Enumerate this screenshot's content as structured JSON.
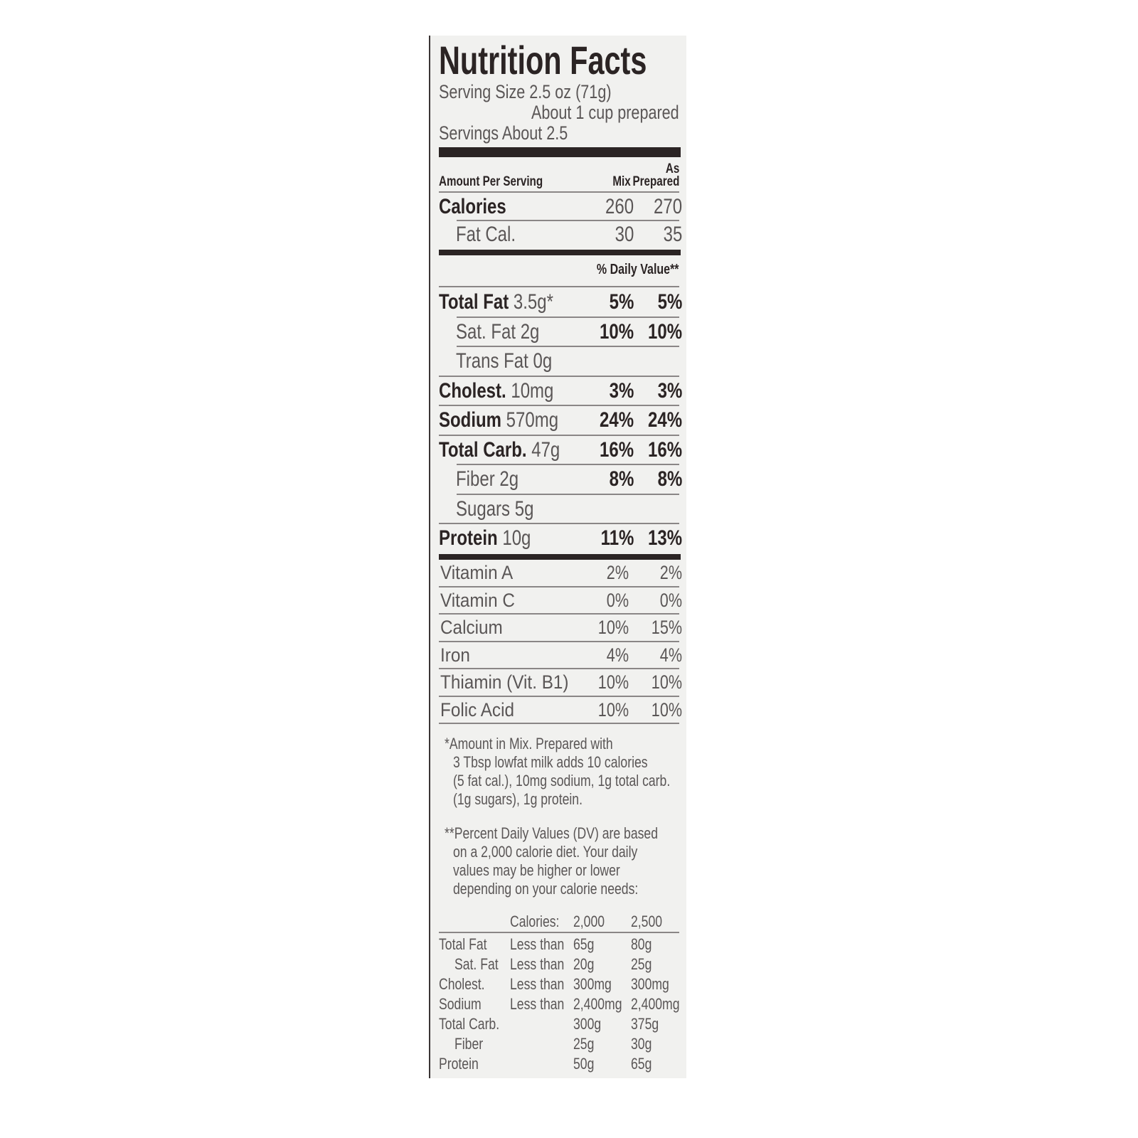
{
  "label": {
    "title": "Nutrition Facts",
    "serving_size": "Serving Size 2.5 oz (71g)",
    "serving_note": "About 1 cup prepared",
    "servings": "Servings About 2.5",
    "header": {
      "amount_per_serving": "Amount Per Serving",
      "mix": "Mix",
      "as": "As",
      "prepared": "Prepared"
    },
    "calories": {
      "label": "Calories",
      "mix": "260",
      "prepared": "270"
    },
    "fat_cal": {
      "label": "Fat Cal.",
      "mix": "30",
      "prepared": "35"
    },
    "daily_value_header": "% Daily Value**",
    "nutrients": [
      {
        "name": "Total Fat",
        "amount": "3.5g*",
        "mix": "5%",
        "prepared": "5%",
        "bold": true,
        "indent": false
      },
      {
        "name": "Sat. Fat",
        "amount": "2g",
        "mix": "10%",
        "prepared": "10%",
        "bold": false,
        "indent": true
      },
      {
        "name": "Trans Fat",
        "amount": "0g",
        "mix": "",
        "prepared": "",
        "bold": false,
        "indent": true
      },
      {
        "name": "Cholest.",
        "amount": "10mg",
        "mix": "3%",
        "prepared": "3%",
        "bold": true,
        "indent": false
      },
      {
        "name": "Sodium",
        "amount": "570mg",
        "mix": "24%",
        "prepared": "24%",
        "bold": true,
        "indent": false
      },
      {
        "name": "Total Carb.",
        "amount": "47g",
        "mix": "16%",
        "prepared": "16%",
        "bold": true,
        "indent": false
      },
      {
        "name": "Fiber",
        "amount": "2g",
        "mix": "8%",
        "prepared": "8%",
        "bold": false,
        "indent": true
      },
      {
        "name": "Sugars",
        "amount": "5g",
        "mix": "",
        "prepared": "",
        "bold": false,
        "indent": true
      },
      {
        "name": "Protein",
        "amount": "10g",
        "mix": "11%",
        "prepared": "13%",
        "bold": true,
        "indent": false
      }
    ],
    "vitamins": [
      {
        "name": "Vitamin A",
        "mix": "2%",
        "prepared": "2%"
      },
      {
        "name": "Vitamin C",
        "mix": "0%",
        "prepared": "0%"
      },
      {
        "name": "Calcium",
        "mix": "10%",
        "prepared": "15%"
      },
      {
        "name": "Iron",
        "mix": "4%",
        "prepared": "4%"
      },
      {
        "name": "Thiamin (Vit. B1)",
        "mix": "10%",
        "prepared": "10%"
      },
      {
        "name": "Folic Acid",
        "mix": "10%",
        "prepared": "10%"
      }
    ],
    "footnote_1": [
      "*Amount in Mix. Prepared with",
      "3 Tbsp lowfat milk adds 10 calories",
      "(5 fat cal.), 10mg sodium, 1g total carb.",
      "(1g sugars), 1g protein."
    ],
    "footnote_2": [
      "**Percent Daily Values (DV) are based",
      "on a 2,000 calorie diet. Your daily",
      "values may be higher or lower",
      "depending on your calorie needs:"
    ],
    "dv_table": {
      "header": [
        "",
        "Calories:",
        "2,000",
        "2,500"
      ],
      "rows": [
        [
          "Total Fat",
          "Less than",
          "65g",
          "80g"
        ],
        [
          "Sat. Fat",
          "Less than",
          "20g",
          "25g"
        ],
        [
          "Cholest.",
          "Less than",
          "300mg",
          "300mg"
        ],
        [
          "Sodium",
          "Less than",
          "2,400mg",
          "2,400mg"
        ],
        [
          "Total Carb.",
          "",
          "300g",
          "375g"
        ],
        [
          "Fiber",
          "",
          "25g",
          "30g"
        ],
        [
          "Protein",
          "",
          "50g",
          "65g"
        ]
      ]
    }
  },
  "colors": {
    "ink": "#2b2424",
    "text": "#5a5656",
    "background": "#f1f1ef"
  }
}
